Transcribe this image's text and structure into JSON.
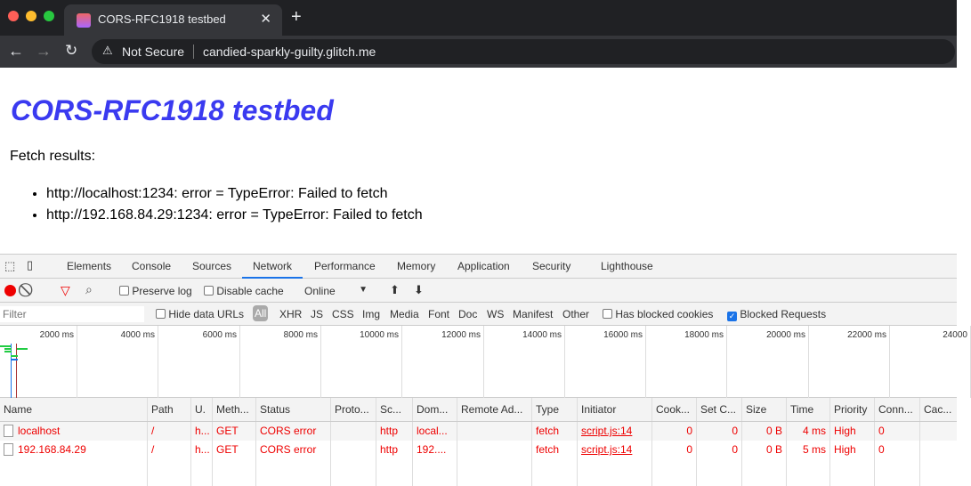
{
  "browser": {
    "tab_title": "CORS-RFC1918 testbed",
    "security": "Not Secure",
    "url": "candied-sparkly-guilty.glitch.me"
  },
  "page": {
    "title": "CORS-RFC1918 testbed",
    "intro": "Fetch results:",
    "results": [
      "http://localhost:1234: error = TypeError: Failed to fetch",
      "http://192.168.84.29:1234: error = TypeError: Failed to fetch"
    ]
  },
  "devtools": {
    "tabs": [
      "Elements",
      "Console",
      "Sources",
      "Network",
      "Performance",
      "Memory",
      "Application",
      "Security",
      "Lighthouse"
    ],
    "active_tab": "Network",
    "toolbar": {
      "preserve_log": "Preserve log",
      "disable_cache": "Disable cache",
      "throttle": "Online"
    },
    "filter": {
      "placeholder": "Filter",
      "hide_data_urls": "Hide data URLs",
      "types": [
        "All",
        "XHR",
        "JS",
        "CSS",
        "Img",
        "Media",
        "Font",
        "Doc",
        "WS",
        "Manifest",
        "Other"
      ],
      "has_blocked_cookies": "Has blocked cookies",
      "blocked_requests": "Blocked Requests",
      "blocked_requests_checked": true
    },
    "timeline_ticks": [
      "2000 ms",
      "4000 ms",
      "6000 ms",
      "8000 ms",
      "10000 ms",
      "12000 ms",
      "14000 ms",
      "16000 ms",
      "18000 ms",
      "20000 ms",
      "22000 ms",
      "24000"
    ],
    "columns": [
      "Name",
      "Path",
      "U.",
      "Meth...",
      "Status",
      "Proto...",
      "Sc...",
      "Dom...",
      "Remote Ad...",
      "Type",
      "Initiator",
      "Cook...",
      "Set C...",
      "Size",
      "Time",
      "Priority",
      "Conn...",
      "Cac..."
    ],
    "rows": [
      [
        "localhost",
        "/",
        "h...",
        "GET",
        "CORS error",
        "",
        "http",
        "local...",
        "",
        "fetch",
        "script.js:14",
        "0",
        "0",
        "0 B",
        "4 ms",
        "High",
        "0",
        ""
      ],
      [
        "192.168.84.29",
        "/",
        "h...",
        "GET",
        "CORS error",
        "",
        "http",
        "192....",
        "",
        "fetch",
        "script.js:14",
        "0",
        "0",
        "0 B",
        "5 ms",
        "High",
        "0",
        ""
      ]
    ],
    "error_color": "#ee0000",
    "accent": "#1a73e8"
  }
}
